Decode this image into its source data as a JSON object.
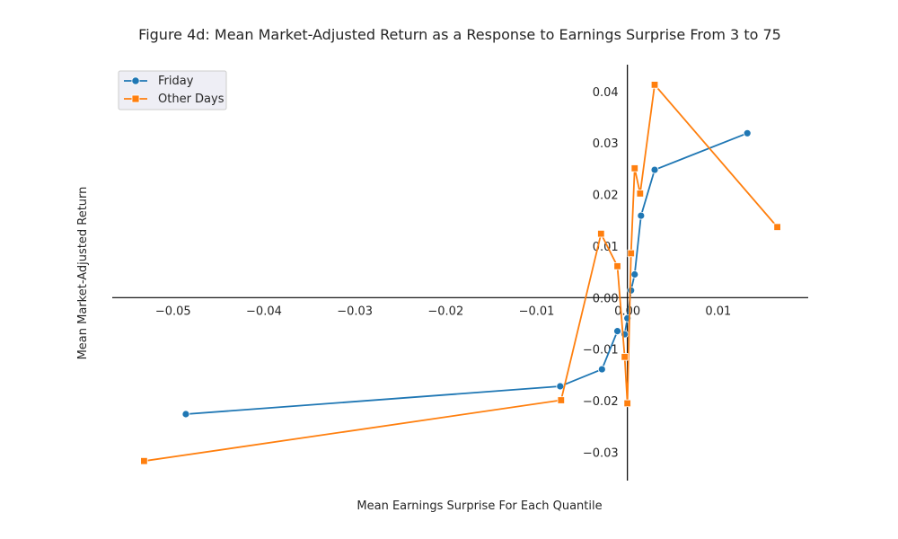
{
  "chart_data": {
    "type": "line",
    "title": "Figure 4d: Mean Market-Adjusted Return as a Response to Earnings Surprise From 3 to 75",
    "xlabel": "Mean Earnings Surprise For Each Quantile",
    "ylabel": "Mean Market-Adjusted Return",
    "xlim": [
      -0.0567,
      0.0199
    ],
    "ylim": [
      -0.0355,
      0.0452
    ],
    "x_ticks": [
      -0.05,
      -0.04,
      -0.03,
      -0.02,
      -0.01,
      0.0,
      0.01
    ],
    "x_tick_labels": [
      "−0.05",
      "−0.04",
      "−0.03",
      "−0.02",
      "−0.01",
      "0.00",
      "0.01"
    ],
    "y_ticks": [
      -0.03,
      -0.02,
      -0.01,
      0.0,
      0.01,
      0.02,
      0.03,
      0.04
    ],
    "y_tick_labels": [
      "−0.03",
      "−0.02",
      "−0.01",
      "0.00",
      "0.01",
      "0.02",
      "0.03",
      "0.04"
    ],
    "legend_position": "top-left",
    "grid": false,
    "series": [
      {
        "name": "Friday",
        "color": "#1f77b4",
        "marker": "circle",
        "points": [
          [
            -0.0486,
            -0.0226
          ],
          [
            -0.0074,
            -0.0172
          ],
          [
            -0.0028,
            -0.0139
          ],
          [
            -0.0011,
            -0.0065
          ],
          [
            -0.0003,
            -0.0071
          ],
          [
            0.0,
            -0.004
          ],
          [
            0.0004,
            0.0014
          ],
          [
            0.0008,
            0.0045
          ],
          [
            0.0015,
            0.0159
          ],
          [
            0.003,
            0.0248
          ],
          [
            0.0132,
            0.0319
          ]
        ]
      },
      {
        "name": "Other Days",
        "color": "#ff7f0e",
        "marker": "square",
        "points": [
          [
            -0.0532,
            -0.0317
          ],
          [
            -0.0073,
            -0.0199
          ],
          [
            -0.0029,
            0.0124
          ],
          [
            -0.0011,
            0.0061
          ],
          [
            -0.0003,
            -0.0115
          ],
          [
            0.0,
            -0.0205
          ],
          [
            0.0004,
            0.0086
          ],
          [
            0.0008,
            0.0251
          ],
          [
            0.0014,
            0.0202
          ],
          [
            0.003,
            0.0413
          ],
          [
            0.0165,
            0.0137
          ]
        ]
      }
    ]
  }
}
